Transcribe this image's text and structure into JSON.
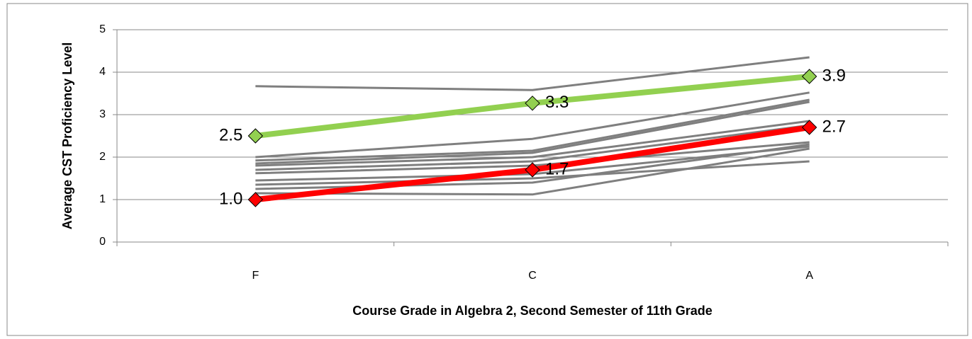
{
  "chart_data": {
    "type": "line",
    "x_label": "Course Grade in Algebra 2, Second Semester of 11th Grade",
    "y_label": "Average CST Proficiency Level",
    "categories": [
      "F",
      "C",
      "A"
    ],
    "ylim": [
      0,
      5
    ],
    "yticks": [
      0,
      1,
      2,
      3,
      4,
      5
    ],
    "grid": true,
    "series": [
      {
        "color": "#7f7f7f",
        "values": [
          3.67,
          3.58,
          4.35
        ]
      },
      {
        "color": "#7f7f7f",
        "values": [
          2.0,
          2.43,
          3.52
        ]
      },
      {
        "color": "#7f7f7f",
        "values": [
          1.92,
          2.15,
          3.35
        ]
      },
      {
        "color": "#7f7f7f",
        "values": [
          1.85,
          2.1,
          3.3
        ]
      },
      {
        "color": "#7f7f7f",
        "values": [
          1.8,
          2.0,
          2.85
        ]
      },
      {
        "color": "#7f7f7f",
        "values": [
          1.7,
          1.9,
          2.75
        ]
      },
      {
        "color": "#7f7f7f",
        "values": [
          1.62,
          1.8,
          2.35
        ]
      },
      {
        "color": "#7f7f7f",
        "values": [
          1.45,
          1.6,
          2.25
        ]
      },
      {
        "color": "#7f7f7f",
        "values": [
          1.35,
          1.5,
          1.9
        ]
      },
      {
        "color": "#7f7f7f",
        "values": [
          1.25,
          1.4,
          2.3
        ]
      },
      {
        "color": "#7f7f7f",
        "values": [
          1.15,
          1.12,
          2.2
        ]
      },
      {
        "color": "#92d050",
        "values": [
          2.5,
          3.27,
          3.9
        ],
        "value_labels": [
          "2.5",
          "3.3",
          "3.9"
        ]
      },
      {
        "color": "#ff0000",
        "values": [
          1.0,
          1.7,
          2.7
        ],
        "value_labels": [
          "1.0",
          "1.7",
          "2.7"
        ]
      }
    ]
  }
}
